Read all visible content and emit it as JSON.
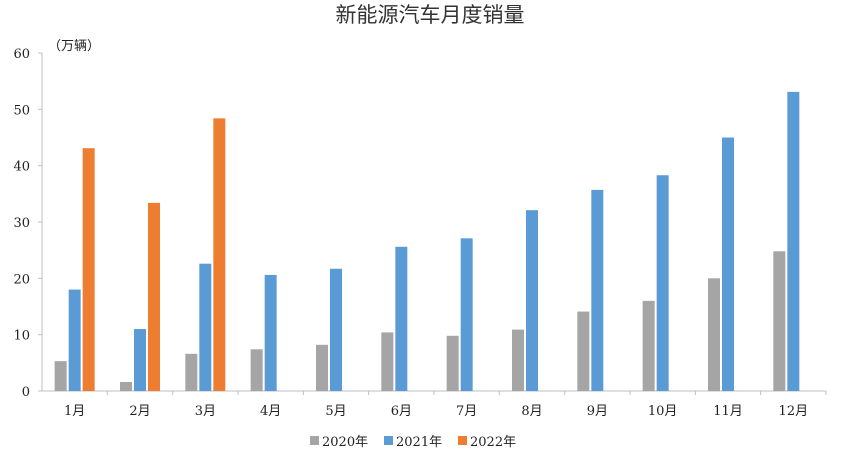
{
  "chart_data": {
    "type": "bar",
    "title": "新能源汽车月度销量",
    "unit_label": "（万辆）",
    "categories": [
      "1月",
      "2月",
      "3月",
      "4月",
      "5月",
      "6月",
      "7月",
      "8月",
      "9月",
      "10月",
      "11月",
      "12月"
    ],
    "series": [
      {
        "name": "2020年",
        "color": "#a5a5a5",
        "values": [
          5.3,
          1.6,
          6.6,
          7.4,
          8.2,
          10.4,
          9.8,
          10.9,
          14.1,
          16.0,
          20.0,
          24.8
        ]
      },
      {
        "name": "2021年",
        "color": "#5b9bd5",
        "values": [
          18.0,
          11.0,
          22.6,
          20.6,
          21.7,
          25.6,
          27.1,
          32.1,
          35.7,
          38.3,
          45.0,
          53.1
        ]
      },
      {
        "name": "2022年",
        "color": "#ed7d31",
        "values": [
          43.1,
          33.4,
          48.4,
          null,
          null,
          null,
          null,
          null,
          null,
          null,
          null,
          null
        ]
      }
    ],
    "ylim": [
      0,
      60
    ],
    "yticks": [
      0,
      10,
      20,
      30,
      40,
      50,
      60
    ],
    "grid": false,
    "legend_position": "bottom-center"
  }
}
